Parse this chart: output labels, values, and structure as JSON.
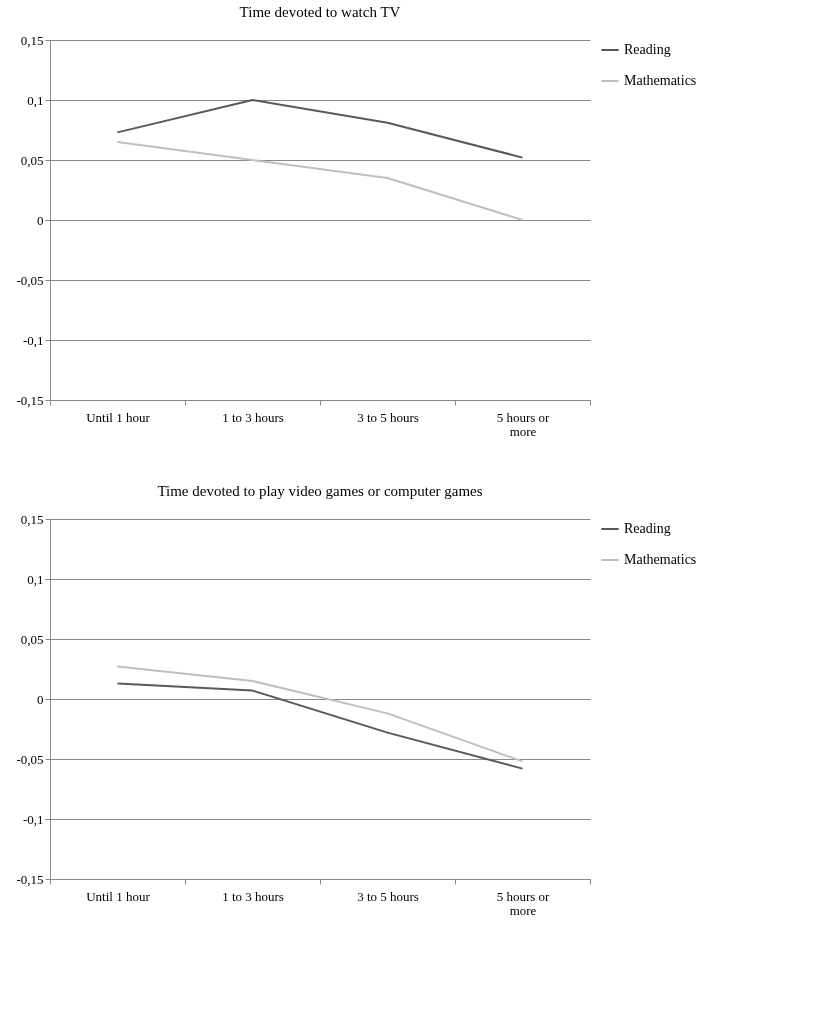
{
  "chart_data": [
    {
      "type": "line",
      "title": "Time  devoted to watch TV",
      "categories": [
        "Until 1 hour",
        "1 to 3 hours",
        "3 to 5 hours",
        "5 hours or more"
      ],
      "series": [
        {
          "name": "Reading",
          "color": "#595959",
          "values": [
            0.073,
            0.1,
            0.081,
            0.052
          ]
        },
        {
          "name": "Mathematics",
          "color": "#bfbfbf",
          "values": [
            0.065,
            0.05,
            0.035,
            0
          ]
        }
      ],
      "ylim": [
        -0.15,
        0.15
      ],
      "yticks": [
        {
          "value": 0.15,
          "label": "0,15"
        },
        {
          "value": 0.1,
          "label": "0,1"
        },
        {
          "value": 0.05,
          "label": "0,05"
        },
        0,
        {
          "value": -0.05,
          "label": "-0,05"
        },
        {
          "value": -0.1,
          "label": "-0,1"
        },
        {
          "value": -0.15,
          "label": "-0,15"
        }
      ],
      "grid": "y",
      "legend": "right",
      "line_style": "solid"
    },
    {
      "type": "line",
      "title": "Time  devoted to play video games or computer games",
      "categories": [
        "Until 1 hour",
        "1 to 3 hours",
        "3 to 5 hours",
        "5 hours or more"
      ],
      "series": [
        {
          "name": "Reading",
          "color": "#595959",
          "values": [
            0.013,
            0.007,
            -0.028,
            -0.058
          ]
        },
        {
          "name": "Mathematics",
          "color": "#bfbfbf",
          "values": [
            0.027,
            0.015,
            -0.012,
            -0.052
          ]
        }
      ],
      "ylim": [
        -0.15,
        0.15
      ],
      "yticks": [
        {
          "value": 0.15,
          "label": "0,15"
        },
        {
          "value": 0.1,
          "label": "0,1"
        },
        {
          "value": 0.05,
          "label": "0,05"
        },
        0,
        {
          "value": -0.05,
          "label": "-0,05"
        },
        {
          "value": -0.1,
          "label": "-0,1"
        },
        {
          "value": -0.15,
          "label": "-0,15"
        }
      ],
      "grid": "y",
      "legend": "right",
      "line_style": "solid"
    }
  ]
}
